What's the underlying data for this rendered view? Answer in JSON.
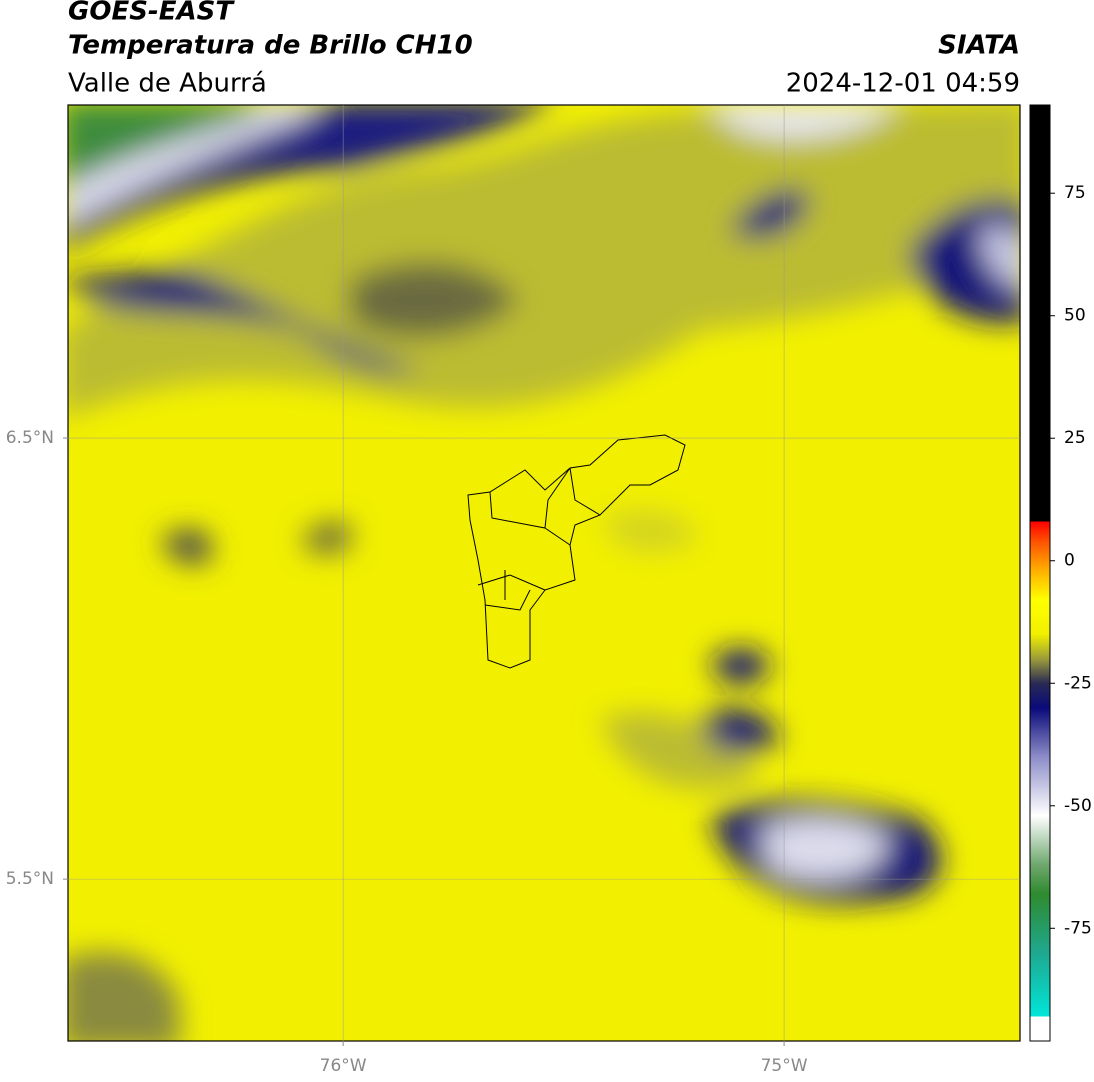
{
  "header": {
    "satellite": "GOES-EAST",
    "product": "Temperatura de Brillo CH10",
    "region": "Valle de Aburrá",
    "source": "SIATA",
    "timestamp": "2024-12-01 04:59"
  },
  "map": {
    "xlim": [
      -76.624,
      -74.465
    ],
    "ylim": [
      5.133,
      7.255
    ],
    "xticks": [
      {
        "value": -76,
        "label": "76°W"
      },
      {
        "value": -75,
        "label": "75°W"
      }
    ],
    "yticks": [
      {
        "value": 6.5,
        "label": "6.5°N"
      },
      {
        "value": 5.5,
        "label": "5.5°N"
      }
    ],
    "grid": true
  },
  "colorbar": {
    "lim": [
      -98,
      93
    ],
    "ticks": [
      75,
      50,
      25,
      0,
      -25,
      -50,
      -75
    ],
    "stops": [
      {
        "value": -98,
        "color": "#ffffff"
      },
      {
        "value": -93,
        "color": "#ffffff"
      },
      {
        "value": -93,
        "color": "#00e6d8"
      },
      {
        "value": -80,
        "color": "#1fa88f"
      },
      {
        "value": -68,
        "color": "#2e8b2e"
      },
      {
        "value": -62,
        "color": "#6fa86f"
      },
      {
        "value": -52,
        "color": "#ffffff"
      },
      {
        "value": -40,
        "color": "#8c8cc8"
      },
      {
        "value": -30,
        "color": "#0a0a7a"
      },
      {
        "value": -25,
        "color": "#2a2a55"
      },
      {
        "value": -20,
        "color": "#9c9c3a"
      },
      {
        "value": -15,
        "color": "#f0f000"
      },
      {
        "value": -8,
        "color": "#ffff00"
      },
      {
        "value": -2,
        "color": "#ffb000"
      },
      {
        "value": 4,
        "color": "#ff5000"
      },
      {
        "value": 8,
        "color": "#ff0000"
      },
      {
        "value": 8,
        "color": "#000000"
      },
      {
        "value": 93,
        "color": "#000000"
      }
    ]
  }
}
